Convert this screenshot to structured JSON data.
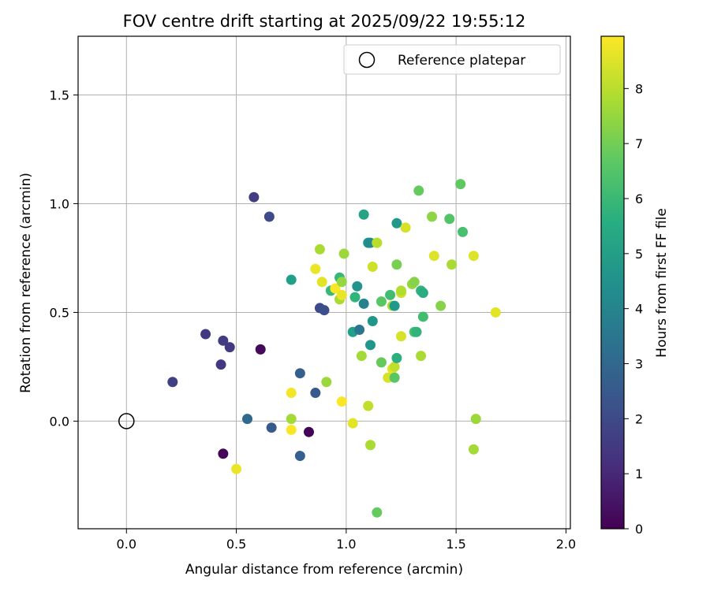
{
  "chart_data": {
    "type": "scatter",
    "title": "FOV centre drift starting at 2025/09/22 19:55:12",
    "xlabel": "Angular distance from reference (arcmin)",
    "ylabel": "Rotation from reference (arcmin)",
    "xlim": [
      -0.22,
      2.02
    ],
    "ylim": [
      -0.495,
      1.77
    ],
    "xticks": [
      0.0,
      0.5,
      1.0,
      1.5,
      2.0
    ],
    "xtick_labels": [
      "0.0",
      "0.5",
      "1.0",
      "1.5",
      "2.0"
    ],
    "yticks": [
      0.0,
      0.5,
      1.0,
      1.5
    ],
    "ytick_labels": [
      "0.0",
      "0.5",
      "1.0",
      "1.5"
    ],
    "grid": true,
    "legend": {
      "position": "top-right",
      "entries": [
        "Reference platepar"
      ]
    },
    "reference_point": {
      "x": 0.0,
      "y": 0.0,
      "label": "Reference platepar"
    },
    "colorbar": {
      "label": "Hours from first FF file",
      "min": 0,
      "max": 8.95,
      "ticks": [
        0,
        1,
        2,
        3,
        4,
        5,
        6,
        7,
        8
      ],
      "tick_labels": [
        "0",
        "1",
        "2",
        "3",
        "4",
        "5",
        "6",
        "7",
        "8"
      ],
      "colormap": "viridis"
    },
    "points": [
      {
        "x": 0.21,
        "y": 0.18,
        "h": 1.7
      },
      {
        "x": 0.36,
        "y": 0.4,
        "h": 1.5
      },
      {
        "x": 0.43,
        "y": 0.26,
        "h": 1.5
      },
      {
        "x": 0.44,
        "y": 0.37,
        "h": 1.6
      },
      {
        "x": 0.47,
        "y": 0.34,
        "h": 1.5
      },
      {
        "x": 0.44,
        "y": -0.15,
        "h": 0.1
      },
      {
        "x": 0.5,
        "y": -0.22,
        "h": 8.7
      },
      {
        "x": 0.55,
        "y": 0.01,
        "h": 3.0
      },
      {
        "x": 0.58,
        "y": 1.03,
        "h": 1.6
      },
      {
        "x": 0.61,
        "y": 0.33,
        "h": 0.2
      },
      {
        "x": 0.65,
        "y": 0.94,
        "h": 2.0
      },
      {
        "x": 0.66,
        "y": -0.03,
        "h": 2.5
      },
      {
        "x": 0.75,
        "y": 0.65,
        "h": 5.0
      },
      {
        "x": 0.75,
        "y": 0.01,
        "h": 7.7
      },
      {
        "x": 0.75,
        "y": 0.13,
        "h": 8.8
      },
      {
        "x": 0.75,
        "y": -0.04,
        "h": 8.9
      },
      {
        "x": 0.79,
        "y": 0.22,
        "h": 2.7
      },
      {
        "x": 0.79,
        "y": -0.16,
        "h": 2.7
      },
      {
        "x": 0.83,
        "y": -0.05,
        "h": 0.1
      },
      {
        "x": 0.86,
        "y": 0.13,
        "h": 2.5
      },
      {
        "x": 0.86,
        "y": 0.7,
        "h": 8.7
      },
      {
        "x": 0.88,
        "y": 0.79,
        "h": 7.8
      },
      {
        "x": 0.88,
        "y": 0.52,
        "h": 2.0
      },
      {
        "x": 0.89,
        "y": 0.64,
        "h": 8.6
      },
      {
        "x": 0.9,
        "y": 0.51,
        "h": 2.2
      },
      {
        "x": 0.91,
        "y": 0.18,
        "h": 7.6
      },
      {
        "x": 0.93,
        "y": 0.6,
        "h": 6.0
      },
      {
        "x": 0.95,
        "y": 0.61,
        "h": 8.9
      },
      {
        "x": 0.97,
        "y": 0.66,
        "h": 6.0
      },
      {
        "x": 0.97,
        "y": 0.56,
        "h": 7.8
      },
      {
        "x": 0.98,
        "y": 0.09,
        "h": 8.9
      },
      {
        "x": 0.98,
        "y": 0.64,
        "h": 7.5
      },
      {
        "x": 0.98,
        "y": 0.58,
        "h": 8.7
      },
      {
        "x": 0.99,
        "y": 0.77,
        "h": 7.6
      },
      {
        "x": 1.03,
        "y": 0.41,
        "h": 5.0
      },
      {
        "x": 1.03,
        "y": -0.01,
        "h": 8.6
      },
      {
        "x": 1.04,
        "y": 0.57,
        "h": 5.8
      },
      {
        "x": 1.05,
        "y": 0.62,
        "h": 4.6
      },
      {
        "x": 1.06,
        "y": 0.42,
        "h": 3.5
      },
      {
        "x": 1.07,
        "y": 0.3,
        "h": 7.7
      },
      {
        "x": 1.08,
        "y": 0.54,
        "h": 4.0
      },
      {
        "x": 1.08,
        "y": 0.95,
        "h": 5.2
      },
      {
        "x": 1.1,
        "y": 0.07,
        "h": 8.1
      },
      {
        "x": 1.1,
        "y": 0.82,
        "h": 4.5
      },
      {
        "x": 1.11,
        "y": 0.82,
        "h": 4.3
      },
      {
        "x": 1.11,
        "y": 0.35,
        "h": 4.7
      },
      {
        "x": 1.11,
        "y": -0.11,
        "h": 7.8
      },
      {
        "x": 1.12,
        "y": 0.71,
        "h": 8.3
      },
      {
        "x": 1.12,
        "y": 0.46,
        "h": 4.7
      },
      {
        "x": 1.14,
        "y": 0.82,
        "h": 8.9
      },
      {
        "x": 1.14,
        "y": 0.82,
        "h": 8.0
      },
      {
        "x": 1.14,
        "y": -0.42,
        "h": 6.8
      },
      {
        "x": 1.16,
        "y": 0.55,
        "h": 6.6
      },
      {
        "x": 1.16,
        "y": 0.27,
        "h": 6.8
      },
      {
        "x": 1.19,
        "y": 0.2,
        "h": 8.4
      },
      {
        "x": 1.2,
        "y": 0.58,
        "h": 6.2
      },
      {
        "x": 1.21,
        "y": 0.53,
        "h": 7.8
      },
      {
        "x": 1.21,
        "y": 0.24,
        "h": 8.6
      },
      {
        "x": 1.22,
        "y": 0.53,
        "h": 4.8
      },
      {
        "x": 1.22,
        "y": 0.2,
        "h": 6.6
      },
      {
        "x": 1.22,
        "y": 0.25,
        "h": 8.1
      },
      {
        "x": 1.23,
        "y": 0.91,
        "h": 4.8
      },
      {
        "x": 1.23,
        "y": 0.72,
        "h": 7.1
      },
      {
        "x": 1.23,
        "y": 0.29,
        "h": 5.6
      },
      {
        "x": 1.25,
        "y": 0.39,
        "h": 8.4
      },
      {
        "x": 1.25,
        "y": 0.59,
        "h": 8.3
      },
      {
        "x": 1.25,
        "y": 0.6,
        "h": 7.9
      },
      {
        "x": 1.27,
        "y": 0.89,
        "h": 8.4
      },
      {
        "x": 1.3,
        "y": 0.63,
        "h": 7.5
      },
      {
        "x": 1.31,
        "y": 0.64,
        "h": 7.3
      },
      {
        "x": 1.31,
        "y": 0.41,
        "h": 6.3
      },
      {
        "x": 1.32,
        "y": 0.41,
        "h": 5.8
      },
      {
        "x": 1.33,
        "y": 1.06,
        "h": 6.8
      },
      {
        "x": 1.34,
        "y": 0.3,
        "h": 7.8
      },
      {
        "x": 1.34,
        "y": 0.6,
        "h": 5.8
      },
      {
        "x": 1.35,
        "y": 0.59,
        "h": 5.5
      },
      {
        "x": 1.35,
        "y": 0.48,
        "h": 6.2
      },
      {
        "x": 1.39,
        "y": 0.94,
        "h": 7.4
      },
      {
        "x": 1.4,
        "y": 0.76,
        "h": 8.5
      },
      {
        "x": 1.43,
        "y": 0.53,
        "h": 7.3
      },
      {
        "x": 1.47,
        "y": 0.93,
        "h": 6.5
      },
      {
        "x": 1.48,
        "y": 0.72,
        "h": 7.8
      },
      {
        "x": 1.52,
        "y": 1.09,
        "h": 6.7
      },
      {
        "x": 1.53,
        "y": 0.87,
        "h": 6.3
      },
      {
        "x": 1.58,
        "y": 0.76,
        "h": 8.5
      },
      {
        "x": 1.58,
        "y": -0.13,
        "h": 7.7
      },
      {
        "x": 1.59,
        "y": 0.01,
        "h": 7.6
      },
      {
        "x": 1.68,
        "y": 0.5,
        "h": 8.6
      }
    ]
  }
}
